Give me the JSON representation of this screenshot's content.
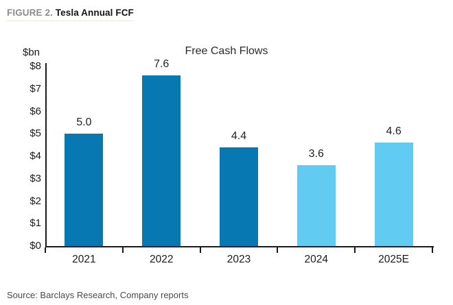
{
  "figure": {
    "label": "FIGURE 2.",
    "title": "Tesla Annual FCF"
  },
  "source": "Source: Barclays Research, Company reports",
  "chart_data": {
    "type": "bar",
    "title": "Free Cash Flows",
    "unit_label": "$bn",
    "categories": [
      "2021",
      "2022",
      "2023",
      "2024",
      "2025E"
    ],
    "values": [
      5.0,
      7.6,
      4.4,
      3.6,
      4.6
    ],
    "value_labels": [
      "5.0",
      "7.6",
      "4.4",
      "3.6",
      "4.6"
    ],
    "bar_colors": [
      "#0878B2",
      "#0878B2",
      "#0878B2",
      "#62CBF2",
      "#62CBF2"
    ],
    "xlabel": "",
    "ylabel": "$bn",
    "ylim": [
      0,
      8
    ],
    "ytick_labels": [
      "$0",
      "$1",
      "$2",
      "$3",
      "$4",
      "$5",
      "$6",
      "$7",
      "$8"
    ],
    "grid": false,
    "legend": "none"
  }
}
